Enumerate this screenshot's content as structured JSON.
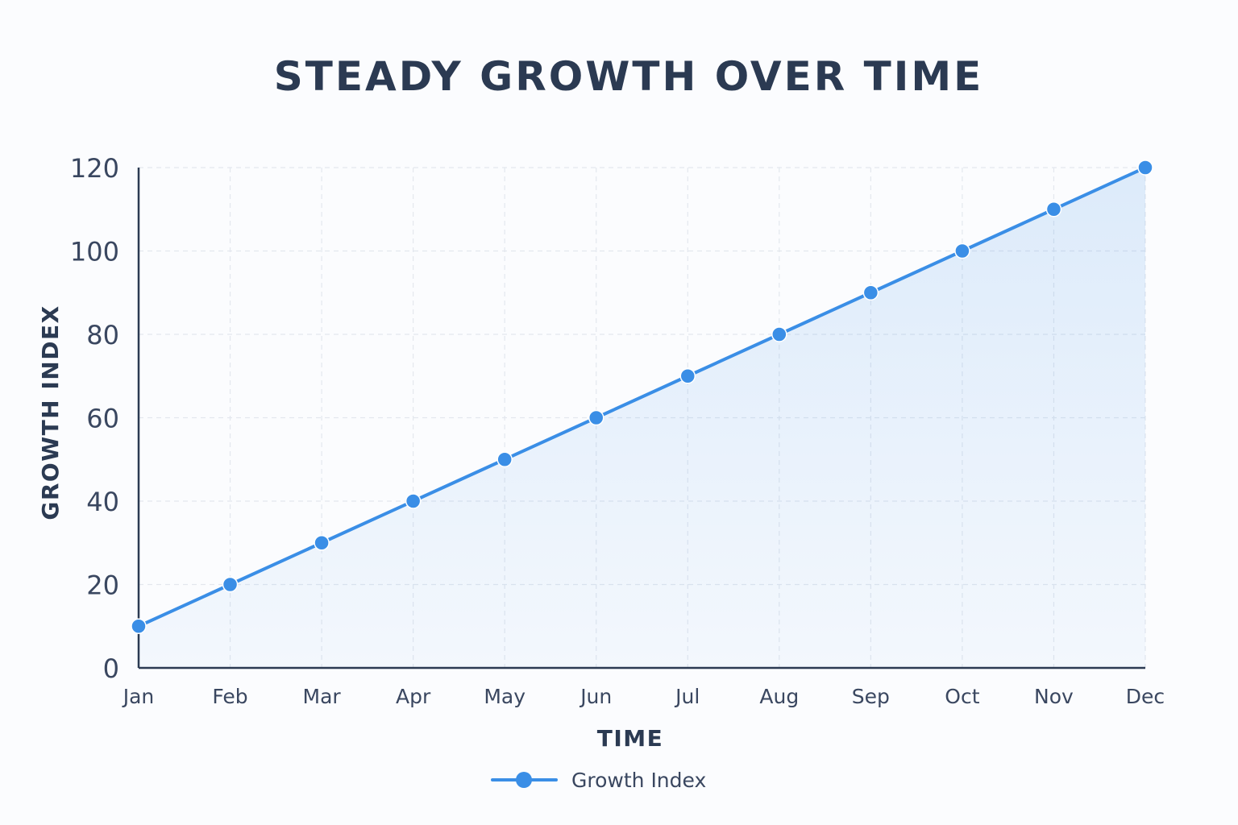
{
  "chart_data": {
    "type": "area",
    "title": "STEADY GROWTH OVER TIME",
    "xlabel": "TIME",
    "ylabel": "GROWTH INDEX",
    "categories": [
      "Jan",
      "Feb",
      "Mar",
      "Apr",
      "May",
      "Jun",
      "Jul",
      "Aug",
      "Sep",
      "Oct",
      "Nov",
      "Dec"
    ],
    "series": [
      {
        "name": "Growth Index",
        "values": [
          10,
          20,
          30,
          40,
          50,
          60,
          70,
          80,
          90,
          100,
          110,
          120
        ],
        "color": "#3a8ee6"
      }
    ],
    "ylim": [
      0,
      120
    ],
    "yticks": [
      0,
      20,
      40,
      60,
      80,
      100,
      120
    ],
    "grid": true,
    "legend_position": "bottom-center",
    "colors": {
      "line": "#3a8ee6",
      "axis": "#2b3a52",
      "text": "#3a4760",
      "grid": "#e3e7ee"
    }
  }
}
